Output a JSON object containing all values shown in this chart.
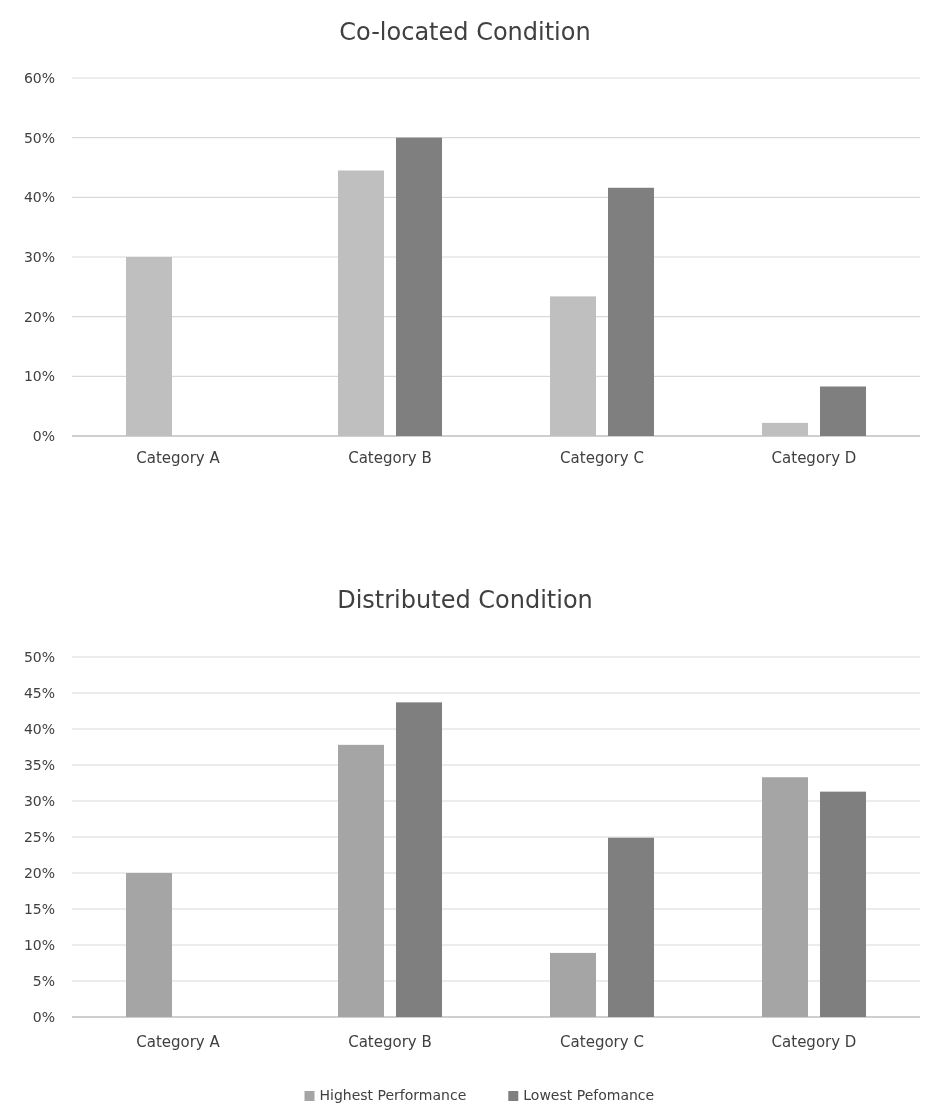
{
  "chart_data": [
    {
      "type": "bar",
      "title": "Co-located Condition",
      "categories": [
        "Category A",
        "Category B",
        "Category C",
        "Category D"
      ],
      "series": [
        {
          "color": "#bfbfbf",
          "values": [
            30,
            44.5,
            23.4,
            2.2
          ]
        },
        {
          "color": "#7f7f7f",
          "values": [
            0,
            50,
            41.6,
            8.3
          ]
        }
      ],
      "ylim": [
        0,
        60
      ],
      "yticks": [
        {
          "value": 0,
          "label": "0%"
        },
        {
          "value": 10,
          "label": "10%"
        },
        {
          "value": 20,
          "label": "20%"
        },
        {
          "value": 30,
          "label": "30%"
        },
        {
          "value": 40,
          "label": "40%"
        },
        {
          "value": 50,
          "label": "50%"
        },
        {
          "value": 60,
          "label": "60%"
        }
      ],
      "grid": "y",
      "legend": false
    },
    {
      "type": "bar",
      "title": "Distributed Condition",
      "categories": [
        "Category A",
        "Category B",
        "Category C",
        "Category D"
      ],
      "series": [
        {
          "name": "Highest Performance",
          "color": "#a5a5a5",
          "values": [
            20,
            37.8,
            8.9,
            33.3
          ]
        },
        {
          "name": "Lowest Pefomance",
          "color": "#7f7f7f",
          "values": [
            0,
            43.7,
            24.9,
            31.3
          ]
        }
      ],
      "ylim": [
        0,
        50
      ],
      "yticks": [
        {
          "value": 0,
          "label": "0%"
        },
        {
          "value": 5,
          "label": "5%"
        },
        {
          "value": 10,
          "label": "10%"
        },
        {
          "value": 15,
          "label": "15%"
        },
        {
          "value": 20,
          "label": "20%"
        },
        {
          "value": 25,
          "label": "25%"
        },
        {
          "value": 30,
          "label": "30%"
        },
        {
          "value": 35,
          "label": "35%"
        },
        {
          "value": 40,
          "label": "40%"
        },
        {
          "value": 45,
          "label": "45%"
        },
        {
          "value": 50,
          "label": "50%"
        }
      ],
      "grid": "y",
      "legend": "bottom"
    }
  ]
}
